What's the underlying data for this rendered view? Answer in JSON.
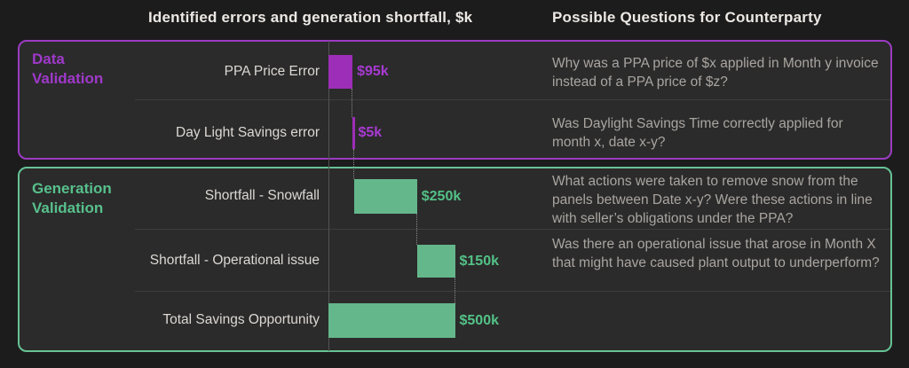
{
  "header": {
    "chart_title": "Identified errors and generation shortfall, $k",
    "questions_title": "Possible Questions for Counterparty"
  },
  "colors": {
    "background": "#1c1c1c",
    "panel_fill": "#2b2b2b",
    "purple_border": "#9c3bc3",
    "purple_bar": "#9d2eb7",
    "purple_heading": "#9f39c9",
    "purple_value": "#a83ad2",
    "green_border": "#66c295",
    "green_bar": "#64b78b",
    "green_heading": "#57c08c",
    "green_value": "#53c287",
    "row_label_text": "#dcd8d4",
    "question_text": "#a9a5a1",
    "header_text": "#ece8e4",
    "separator": "#3e3e3e",
    "axis_line": "#535353",
    "connector": "#8a8a8a"
  },
  "sections": [
    {
      "label": "Data Validation",
      "rows": [
        {
          "label": "PPA Price Error",
          "value_label": "$95k",
          "question": "Why was a PPA price of $x applied in Month y invoice instead of a PPA price of $z?"
        },
        {
          "label": "Day Light Savings error",
          "value_label": "$5k",
          "question": "Was Daylight Savings Time correctly applied for month x, date x-y?"
        }
      ]
    },
    {
      "label": "Generation Validation",
      "rows": [
        {
          "label": "Shortfall - Snowfall",
          "value_label": "$250k",
          "question": "What actions were taken to remove snow from the panels between Date x-y? Were these actions in line with seller’s obligations under the PPA?"
        },
        {
          "label": "Shortfall - Operational issue",
          "value_label": "$150k",
          "question": "Was there an operational issue that arose in Month X that might have caused plant output to underperform?"
        },
        {
          "label": "Total Savings Opportunity",
          "value_label": "$500k",
          "question": ""
        }
      ]
    }
  ],
  "chart_data": {
    "type": "bar",
    "subtype": "waterfall",
    "orientation": "horizontal",
    "title": "Identified errors and generation shortfall, $k",
    "categories": [
      "PPA Price Error",
      "Day Light Savings error",
      "Shortfall - Snowfall",
      "Shortfall - Operational issue",
      "Total Savings Opportunity"
    ],
    "values": [
      95,
      5,
      250,
      150,
      500
    ],
    "starts": [
      0,
      95,
      100,
      350,
      0
    ],
    "value_labels": [
      "$95k",
      "$5k",
      "$250k",
      "$150k",
      "$500k"
    ],
    "bar_colors": [
      "#9d2eb7",
      "#9d2eb7",
      "#64b78b",
      "#64b78b",
      "#64b78b"
    ],
    "value_colors": [
      "#a83ad2",
      "#a83ad2",
      "#53c287",
      "#53c287",
      "#53c287"
    ],
    "xlim": [
      0,
      500
    ],
    "grid": false,
    "legend": false,
    "connectors": true
  }
}
